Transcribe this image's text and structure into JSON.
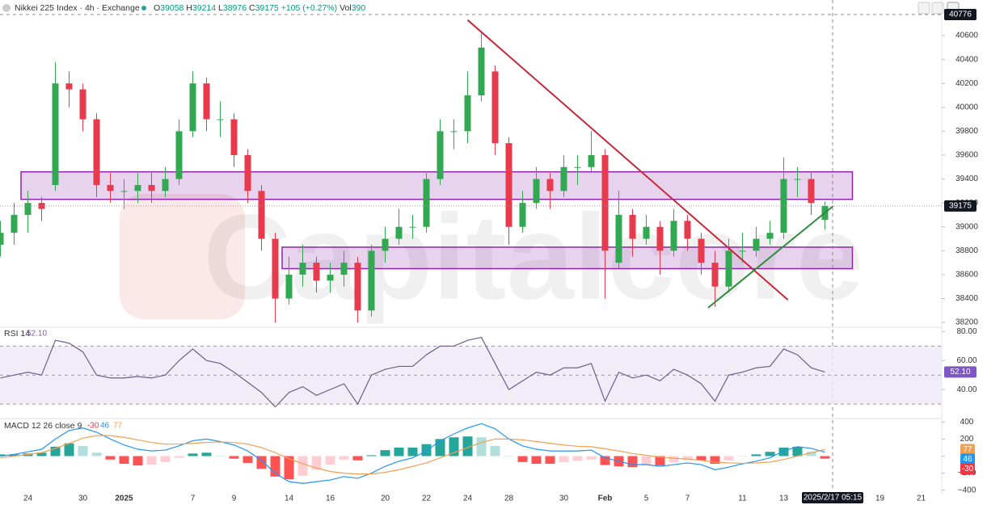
{
  "chart_data": [
    {
      "type": "candlestick",
      "title": "Nikkei 225 Index · 4h · Exchange",
      "ohlc_labels": [
        "O",
        "H",
        "L",
        "C"
      ],
      "change_label": "+105 (+0.27%)",
      "volume_label": "Vol",
      "volume": 390,
      "watermark": "Capitalcore",
      "categories": [
        null,
        null,
        "24",
        null,
        null,
        null,
        "30",
        null,
        null,
        "2025",
        null,
        null,
        null,
        null,
        "7",
        null,
        null,
        "9",
        null,
        null,
        null,
        "14",
        null,
        null,
        "16",
        null,
        null,
        null,
        "20",
        null,
        null,
        "22",
        null,
        null,
        "24",
        null,
        null,
        "28",
        null,
        null,
        null,
        "30",
        null,
        null,
        "Feb",
        null,
        null,
        "5",
        null,
        null,
        "7",
        null,
        null,
        null,
        "11",
        null,
        null,
        "13",
        null,
        null,
        null,
        null,
        null,
        null,
        "19",
        null,
        null,
        "21"
      ],
      "open": [
        38850,
        38950,
        39100,
        39200,
        39350,
        40200,
        40150,
        39900,
        39350,
        39300,
        39300,
        39350,
        39300,
        39400,
        39800,
        40200,
        39900,
        39900,
        39600,
        39300,
        38900,
        38400,
        38600,
        38700,
        38550,
        38600,
        38700,
        38300,
        38800,
        38900,
        39000,
        39000,
        39400,
        39800,
        39800,
        40100,
        40300,
        39700,
        39000,
        39200,
        39400,
        39300,
        39500,
        39500,
        39600,
        38700,
        39100,
        38900,
        39000,
        38800,
        39050,
        38900,
        38700,
        38500,
        38800,
        38800,
        38900,
        38950,
        39400,
        39400,
        39058,
        null,
        null,
        null,
        null,
        null,
        null,
        null
      ],
      "high": [
        39050,
        39200,
        39300,
        39250,
        40380,
        40300,
        40200,
        39950,
        39450,
        39400,
        39450,
        39450,
        39500,
        39900,
        40300,
        40250,
        40050,
        39950,
        39650,
        39350,
        38950,
        38750,
        38850,
        38750,
        38700,
        38800,
        38750,
        38850,
        39000,
        39150,
        39100,
        39450,
        39900,
        39900,
        40300,
        40620,
        40350,
        39750,
        39300,
        39500,
        39450,
        39600,
        39600,
        39800,
        39650,
        39300,
        39150,
        39100,
        39050,
        39150,
        39100,
        38950,
        38800,
        38900,
        38950,
        39000,
        39050,
        39580,
        39500,
        39450,
        39214,
        null,
        null,
        null,
        null,
        null,
        null,
        null
      ],
      "low": [
        38750,
        38850,
        38950,
        39050,
        39300,
        40000,
        39800,
        39250,
        39200,
        39150,
        39200,
        39200,
        39250,
        39350,
        39750,
        39800,
        39750,
        39500,
        39200,
        38800,
        38200,
        38350,
        38500,
        38450,
        38450,
        38500,
        38200,
        38250,
        38700,
        38850,
        38900,
        38950,
        39350,
        39650,
        39700,
        40050,
        39600,
        38850,
        38950,
        39150,
        39150,
        39250,
        39350,
        39450,
        38400,
        38650,
        38750,
        38850,
        38600,
        38750,
        38800,
        38600,
        38330,
        38450,
        38700,
        38750,
        38850,
        38900,
        39250,
        39100,
        38976,
        null,
        null,
        null,
        null,
        null,
        null,
        null
      ],
      "close": [
        38950,
        39100,
        39200,
        39150,
        40200,
        40150,
        39900,
        39350,
        39300,
        39300,
        39350,
        39300,
        39400,
        39800,
        40200,
        39900,
        39900,
        39600,
        39300,
        38900,
        38400,
        38600,
        38700,
        38550,
        38600,
        38700,
        38300,
        38800,
        38900,
        39000,
        39000,
        39400,
        39800,
        39800,
        40100,
        40500,
        39700,
        39000,
        39200,
        39400,
        39300,
        39500,
        39500,
        39600,
        38800,
        39100,
        38900,
        39000,
        38800,
        39050,
        38900,
        38700,
        38500,
        38800,
        38800,
        38900,
        38950,
        39400,
        39400,
        39200,
        39175,
        null,
        null,
        null,
        null,
        null,
        null,
        null
      ],
      "up_color": "#33a852",
      "down_color": "#e8394d",
      "ylim": [
        38160,
        40820
      ],
      "yticks": [
        38200,
        38400,
        38600,
        38800,
        39000,
        39200,
        39400,
        39600,
        39800,
        40000,
        40200,
        40400,
        40600
      ],
      "zones": [
        {
          "from": 1.5,
          "to": 62,
          "low": 39230,
          "high": 39460
        },
        {
          "from": 20.5,
          "to": 62,
          "low": 38650,
          "high": 38830
        }
      ],
      "zone_color": "#8e24aa",
      "trend_lines": [
        {
          "from": 34,
          "to": 57.3,
          "start": 40730,
          "end": 38390,
          "color": "#c62839"
        },
        {
          "from": 51.5,
          "to": 60.6,
          "start": 38323,
          "end": 39174,
          "color": "#2e8b3a"
        }
      ],
      "crosshair": {
        "price": 40776,
        "time": "2025/2/17 05:15"
      }
    },
    {
      "type": "line",
      "title": "RSI 14",
      "value_label": "52.10",
      "color": "#6a5f8a",
      "band_color": "#ede7f6",
      "values": [
        48,
        50,
        52,
        50,
        74,
        72,
        66,
        50,
        48,
        48,
        49,
        48,
        50,
        60,
        68,
        60,
        58,
        52,
        45,
        38,
        28,
        38,
        42,
        36,
        40,
        44,
        30,
        50,
        54,
        56,
        56,
        64,
        70,
        70,
        74,
        76,
        58,
        40,
        46,
        52,
        50,
        55,
        55,
        58,
        32,
        52,
        48,
        50,
        46,
        54,
        50,
        44,
        32,
        50,
        52,
        55,
        56,
        68,
        64,
        55,
        52.1,
        null,
        null,
        null,
        null,
        null,
        null,
        null
      ],
      "levels": [
        70,
        50,
        30
      ],
      "ylim": [
        20,
        83
      ],
      "yticks": [
        {
          "value": 80,
          "label": "80.00"
        },
        {
          "value": 60,
          "label": "60.00"
        },
        {
          "value": 40,
          "label": "40.00"
        }
      ]
    },
    {
      "type": "macd",
      "title": "MACD 12 26 close 9",
      "series": [
        {
          "name": "Histogram",
          "values": [
            20,
            20,
            30,
            40,
            110,
            150,
            120,
            40,
            -40,
            -90,
            -110,
            -100,
            -70,
            -20,
            30,
            40,
            5,
            -30,
            -80,
            -150,
            -240,
            -270,
            -230,
            -160,
            -100,
            -40,
            -50,
            10,
            70,
            100,
            100,
            140,
            200,
            220,
            230,
            220,
            120,
            0,
            -70,
            -90,
            -90,
            -70,
            -55,
            -40,
            -105,
            -120,
            -130,
            -110,
            -110,
            -75,
            -45,
            -50,
            -90,
            -50,
            -5,
            20,
            50,
            100,
            110,
            50,
            -30,
            null,
            null,
            null,
            null,
            null,
            null,
            null
          ],
          "colors": [
            "#26a69a",
            "#b2dfdb",
            "#ffcdd2",
            "#ff5252"
          ],
          "color": "#f23645"
        },
        {
          "name": "MACD",
          "color": "#2196f3",
          "values": [
            0,
            20,
            50,
            80,
            200,
            300,
            330,
            280,
            200,
            130,
            80,
            60,
            70,
            120,
            180,
            200,
            170,
            130,
            60,
            -50,
            -200,
            -300,
            -320,
            -300,
            -280,
            -240,
            -260,
            -200,
            -120,
            -60,
            -20,
            60,
            180,
            260,
            330,
            380,
            320,
            200,
            120,
            80,
            60,
            60,
            60,
            70,
            -20,
            -60,
            -100,
            -100,
            -120,
            -100,
            -80,
            -100,
            -160,
            -130,
            -90,
            -60,
            -20,
            60,
            110,
            90,
            46,
            null,
            null,
            null,
            null,
            null,
            null,
            null
          ]
        },
        {
          "name": "Signal",
          "color": "#f0a050",
          "values": [
            -20,
            0,
            20,
            40,
            90,
            150,
            210,
            240,
            240,
            220,
            190,
            160,
            140,
            140,
            150,
            160,
            165,
            160,
            140,
            100,
            40,
            -30,
            -90,
            -140,
            -180,
            -200,
            -210,
            -210,
            -190,
            -160,
            -120,
            -80,
            -20,
            40,
            100,
            160,
            200,
            200,
            190,
            170,
            150,
            130,
            115,
            110,
            85,
            60,
            30,
            10,
            -10,
            -25,
            -35,
            -50,
            -70,
            -80,
            -85,
            -80,
            -70,
            -40,
            0,
            40,
            77,
            null,
            null,
            null,
            null,
            null,
            null,
            null
          ]
        }
      ],
      "ylim": [
        -450,
        440
      ],
      "yticks": [
        400,
        200,
        0,
        {
          "value": -200,
          "label": "−200"
        },
        {
          "value": -400,
          "label": "−400"
        }
      ]
    }
  ]
}
